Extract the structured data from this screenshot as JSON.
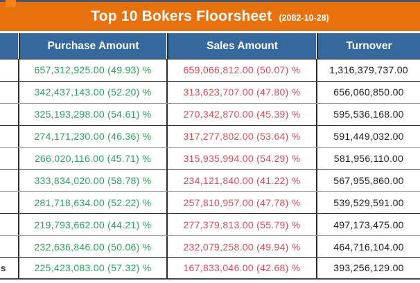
{
  "title_bar": {
    "title": "Top 10 Bokers Floorsheet",
    "date": "(2082-10-28)"
  },
  "chart_data": {
    "type": "table",
    "title": "Top 10 Bokers Floorsheet",
    "subtitle": "(2082-10-28)",
    "columns": [
      "",
      "Purchase Amount",
      "Sales Amount",
      "Turnover"
    ],
    "rows": [
      {
        "broker_fragment": "",
        "purchase": "657,312,925.00 (49.93) %",
        "sales": "659,066,812.00 (50.07) %",
        "turnover": "1,316,379,737.00"
      },
      {
        "broker_fragment": "",
        "purchase": "342,437,143.00 (52.20) %",
        "sales": "313,623,707.00 (47.80) %",
        "turnover": "656,060,850.00"
      },
      {
        "broker_fragment": "",
        "purchase": "325,193,298.00 (54.61) %",
        "sales": "270,342,870.00 (45.39) %",
        "turnover": "595,536,168.00"
      },
      {
        "broker_fragment": "",
        "purchase": "274,171,230.00 (46.36) %",
        "sales": "317,277,802.00 (53.64) %",
        "turnover": "591,449,032.00"
      },
      {
        "broker_fragment": "",
        "purchase": "266,020,116.00 (45.71) %",
        "sales": "315,935,994.00 (54.29) %",
        "turnover": "581,956,110.00"
      },
      {
        "broker_fragment": "",
        "purchase": "333,834,020.00 (58.78) %",
        "sales": "234,121,840.00 (41.22) %",
        "turnover": "567,955,860.00"
      },
      {
        "broker_fragment": "",
        "purchase": "281,718,634.00 (52.22) %",
        "sales": "257,810,957.00 (47.78) %",
        "turnover": "539,529,591.00"
      },
      {
        "broker_fragment": "",
        "purchase": "219,793,662.00 (44.21) %",
        "sales": "277,379,813.00 (55.79) %",
        "turnover": "497,173,475.00"
      },
      {
        "broker_fragment": "",
        "purchase": "232,636,846.00 (50.06) %",
        "sales": "232,079,258.00 (49.94) %",
        "turnover": "464,716,104.00"
      },
      {
        "broker_fragment": "s",
        "purchase": "225,423,083.00 (57.32) %",
        "sales": "167,833,046.00 (42.68) %",
        "turnover": "393,256,129.00"
      }
    ]
  },
  "colors": {
    "orange": "#E8710D",
    "orange-bright": "#F6821C",
    "strip": "#4B5A6B",
    "header-blue": "#35699E",
    "green": "#2AA25C",
    "red": "#D64D58",
    "text-dark": "#1D1D1D",
    "border-dark": "#333333",
    "border-light": "#9A9A9A"
  }
}
